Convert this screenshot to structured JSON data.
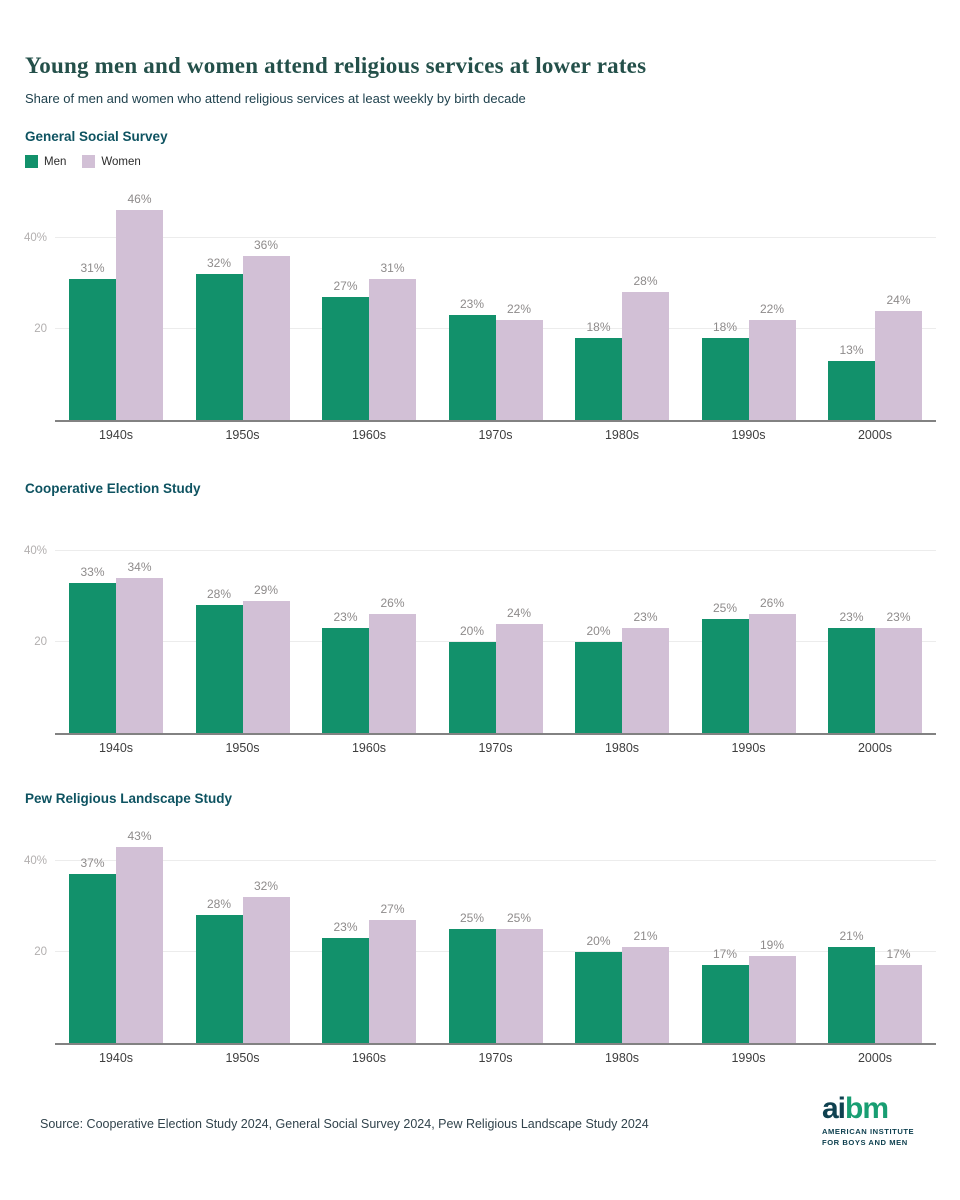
{
  "page": {
    "title": "Young men and women attend religious services at lower rates",
    "subtitle": "Share of men and women who attend religious services at least weekly by birth decade"
  },
  "legend": {
    "items": [
      {
        "label": "Men",
        "color": "#12916B"
      },
      {
        "label": "Women",
        "color": "#D2C0D6"
      }
    ]
  },
  "colors": {
    "men": "#12916B",
    "women": "#D2C0D6",
    "grid": "#ECECEC",
    "baseline": "#828282",
    "value_label": "#8E8B8B",
    "x_tick_label": "#3E3E3E",
    "y_tick_label": "#B2AFAF",
    "title": "#24504A",
    "section_title": "#0E5361"
  },
  "chart_data": [
    {
      "type": "bar",
      "title": "General Social Survey",
      "categories": [
        "1940s",
        "1950s",
        "1960s",
        "1970s",
        "1980s",
        "1990s",
        "2000s"
      ],
      "series": [
        {
          "name": "Men",
          "values": [
            31,
            32,
            27,
            23,
            18,
            18,
            13
          ]
        },
        {
          "name": "Women",
          "values": [
            46,
            36,
            31,
            22,
            28,
            22,
            24
          ]
        }
      ],
      "value_suffix": "%",
      "ylim": [
        0,
        50
      ],
      "yticks": [
        {
          "v": 20,
          "label": "20"
        },
        {
          "v": 40,
          "label": "40%"
        }
      ],
      "grid": "horizontal only",
      "legend_position": "top-left above chart"
    },
    {
      "type": "bar",
      "title": "Cooperative Election Study",
      "categories": [
        "1940s",
        "1950s",
        "1960s",
        "1970s",
        "1980s",
        "1990s",
        "2000s"
      ],
      "series": [
        {
          "name": "Men",
          "values": [
            33,
            28,
            23,
            20,
            20,
            25,
            23
          ]
        },
        {
          "name": "Women",
          "values": [
            34,
            29,
            26,
            24,
            23,
            26,
            23
          ]
        }
      ],
      "value_suffix": "%",
      "ylim": [
        0,
        50
      ],
      "yticks": [
        {
          "v": 20,
          "label": "20"
        },
        {
          "v": 40,
          "label": "40%"
        }
      ],
      "grid": "horizontal only",
      "legend_position": "shared"
    },
    {
      "type": "bar",
      "title": "Pew Religious Landscape Study",
      "categories": [
        "1940s",
        "1950s",
        "1960s",
        "1970s",
        "1980s",
        "1990s",
        "2000s"
      ],
      "series": [
        {
          "name": "Men",
          "values": [
            37,
            28,
            23,
            25,
            20,
            17,
            21
          ]
        },
        {
          "name": "Women",
          "values": [
            43,
            32,
            27,
            25,
            21,
            19,
            17
          ]
        }
      ],
      "value_suffix": "%",
      "ylim": [
        0,
        50
      ],
      "yticks": [
        {
          "v": 20,
          "label": "20"
        },
        {
          "v": 40,
          "label": "40%"
        }
      ],
      "grid": "horizontal only",
      "legend_position": "shared"
    }
  ],
  "footer": {
    "source": "Source: Cooperative Election Study 2024, General Social Survey 2024, Pew Religious Landscape Study 2024",
    "logo": {
      "wordmark_dark": "ai",
      "wordmark_green": "bm",
      "line1": "AMERICAN INSTITUTE",
      "line2": "FOR BOYS AND MEN"
    }
  }
}
